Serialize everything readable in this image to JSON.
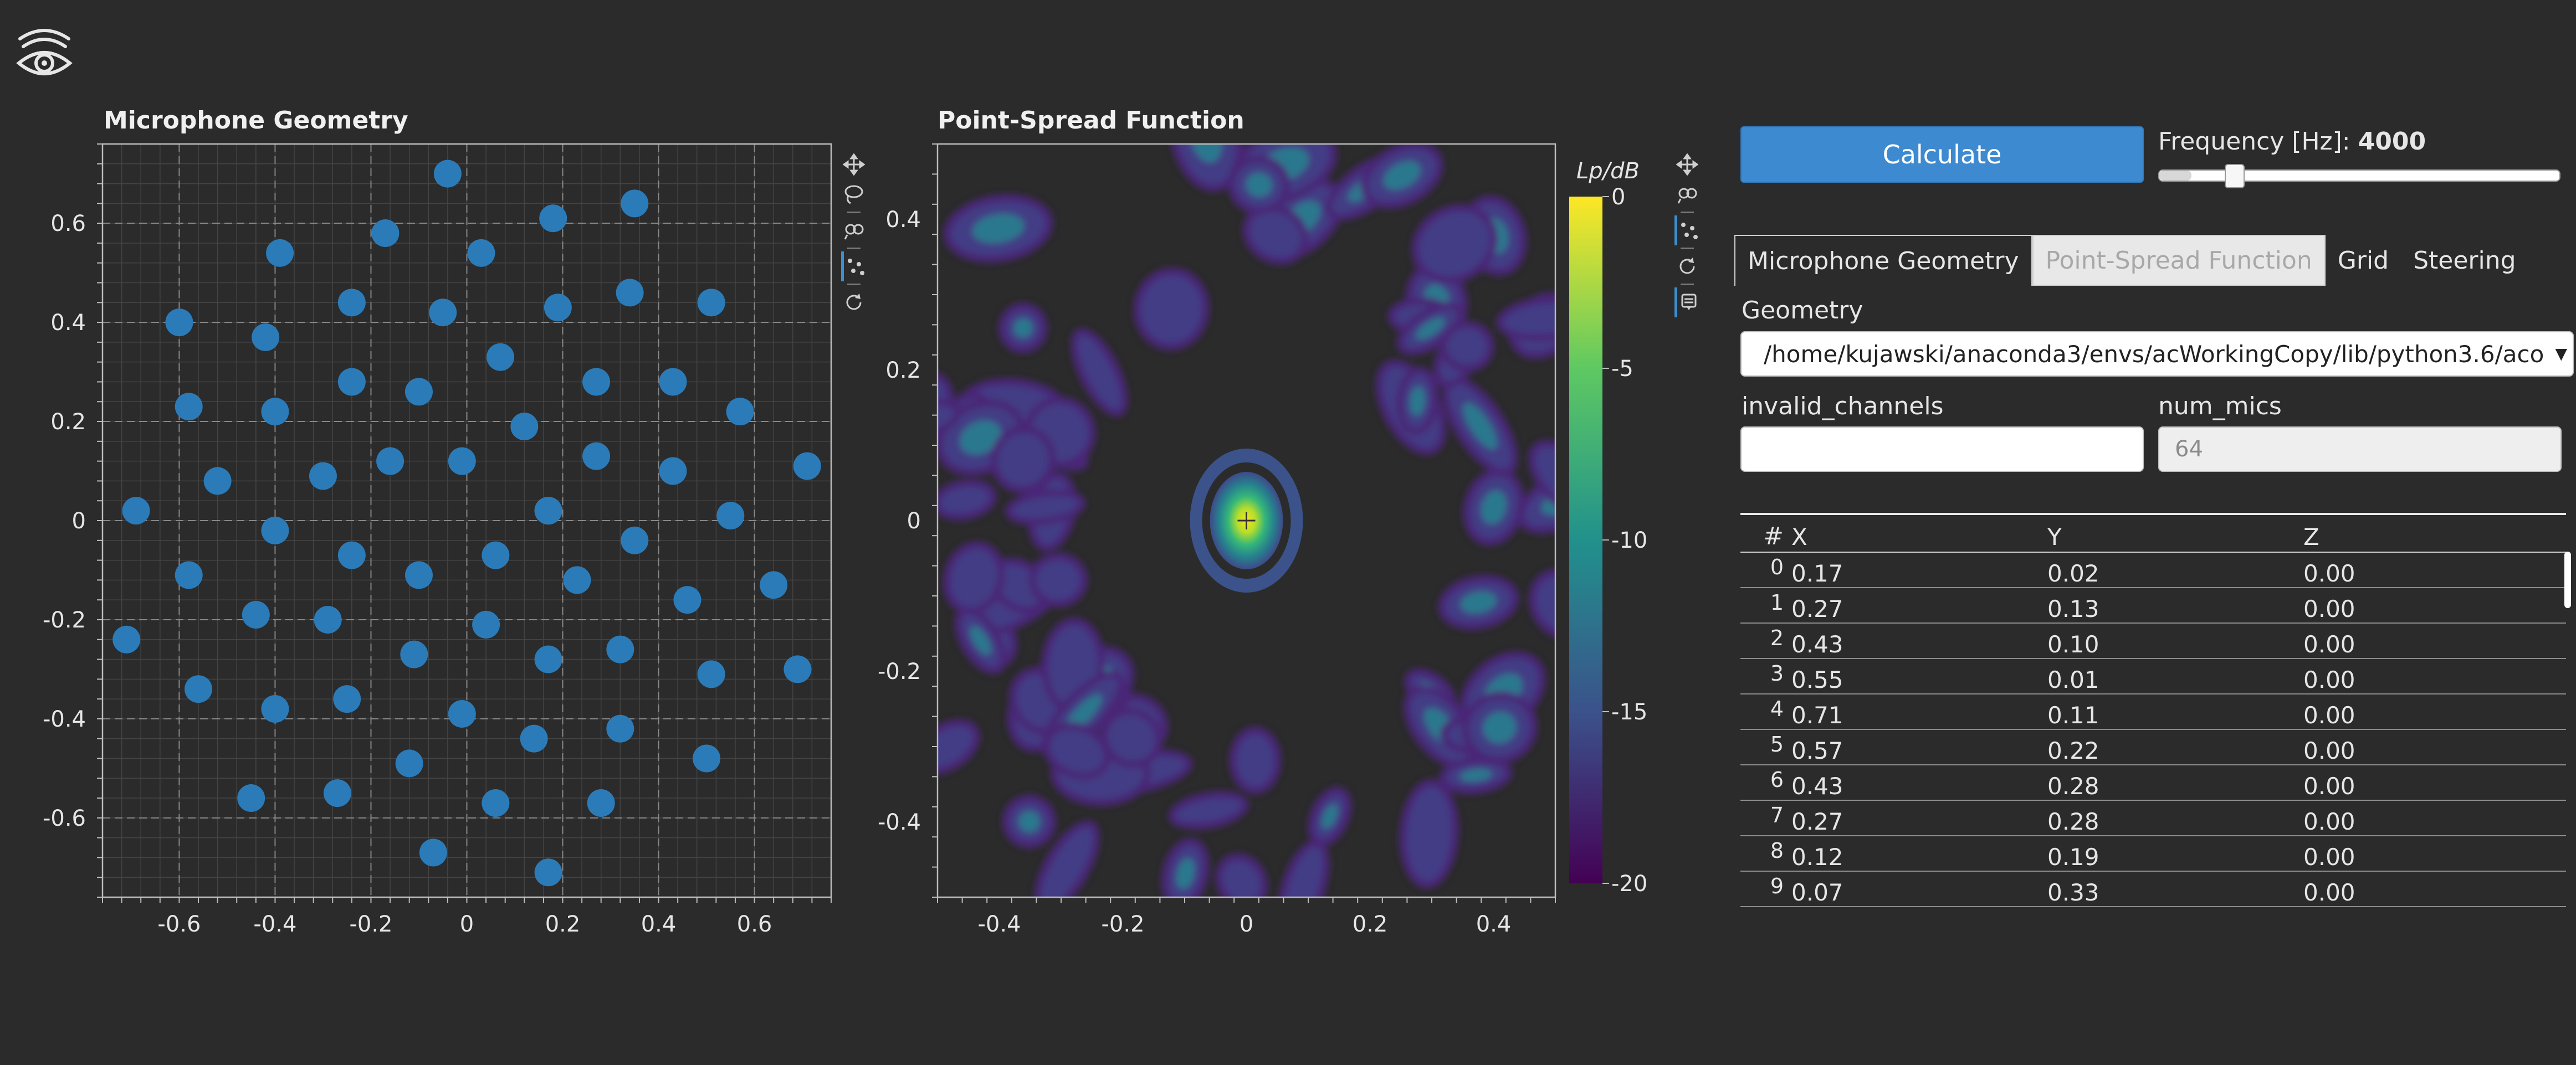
{
  "icons": {
    "logo": "eye-logo-icon",
    "pan": "pan-icon",
    "lasso": "lasso-select-icon",
    "wheel_zoom": "wheel-zoom-icon",
    "hover": "hover-icon",
    "reset": "reset-icon",
    "tap": "tap-icon",
    "crosshair": "crosshair-icon"
  },
  "colors": {
    "background": "#2b2b2b",
    "accent": "#3d8ad1",
    "marker": "#2b7bb9",
    "plot_bg": "#2b2b2b"
  },
  "geometry_plot": {
    "title": "Microphone Geometry",
    "x_ticks": [
      "-0.6",
      "-0.4",
      "-0.2",
      "0",
      "0.2",
      "0.4",
      "0.6"
    ],
    "y_ticks": [
      "0.6",
      "0.4",
      "0.2",
      "0",
      "-0.2",
      "-0.4",
      "-0.6"
    ]
  },
  "psf_plot": {
    "title": "Point-Spread Function",
    "x_ticks": [
      "-0.4",
      "-0.2",
      "0",
      "0.2",
      "0.4"
    ],
    "y_ticks": [
      "0.4",
      "0.2",
      "0",
      "-0.2",
      "-0.4"
    ],
    "colorbar_title": "Lp/dB",
    "colorbar_ticks": [
      "0",
      "-5",
      "-10",
      "-15",
      "-20"
    ]
  },
  "controls": {
    "calculate_label": "Calculate",
    "frequency_label": "Frequency [Hz]: ",
    "frequency_value": "4000",
    "frequency_fraction": 0.08
  },
  "tabs": [
    {
      "label": "Microphone Geometry",
      "state": "active"
    },
    {
      "label": "Point-Spread Function",
      "state": "disabled"
    },
    {
      "label": "Grid",
      "state": "normal"
    },
    {
      "label": "Steering",
      "state": "normal"
    }
  ],
  "form": {
    "geometry_label": "Geometry",
    "geometry_value": "/home/kujawski/anaconda3/envs/acWorkingCopy/lib/python3.6/aco",
    "invalid_channels_label": "invalid_channels",
    "invalid_channels_value": "",
    "num_mics_label": "num_mics",
    "num_mics_value": "64"
  },
  "table": {
    "headers": [
      "#",
      "X",
      "Y",
      "Z"
    ],
    "rows": [
      [
        "0",
        "0.17",
        "0.02",
        "0.00"
      ],
      [
        "1",
        "0.27",
        "0.13",
        "0.00"
      ],
      [
        "2",
        "0.43",
        "0.10",
        "0.00"
      ],
      [
        "3",
        "0.55",
        "0.01",
        "0.00"
      ],
      [
        "4",
        "0.71",
        "0.11",
        "0.00"
      ],
      [
        "5",
        "0.57",
        "0.22",
        "0.00"
      ],
      [
        "6",
        "0.43",
        "0.28",
        "0.00"
      ],
      [
        "7",
        "0.27",
        "0.28",
        "0.00"
      ],
      [
        "8",
        "0.12",
        "0.19",
        "0.00"
      ],
      [
        "9",
        "0.07",
        "0.33",
        "0.00"
      ]
    ]
  },
  "chart_data": [
    {
      "type": "scatter",
      "title": "Microphone Geometry",
      "xlim": [
        -0.76,
        0.76
      ],
      "ylim": [
        -0.76,
        0.76
      ],
      "grid": true,
      "points": [
        [
          0.17,
          0.02
        ],
        [
          0.27,
          0.13
        ],
        [
          0.43,
          0.1
        ],
        [
          0.55,
          0.01
        ],
        [
          0.71,
          0.11
        ],
        [
          0.57,
          0.22
        ],
        [
          0.43,
          0.28
        ],
        [
          0.27,
          0.28
        ],
        [
          0.12,
          0.19
        ],
        [
          0.07,
          0.33
        ],
        [
          0.19,
          0.43
        ],
        [
          0.34,
          0.46
        ],
        [
          0.51,
          0.44
        ],
        [
          0.35,
          0.64
        ],
        [
          0.18,
          0.61
        ],
        [
          0.03,
          0.54
        ],
        [
          -0.05,
          0.42
        ],
        [
          -0.1,
          0.26
        ],
        [
          -0.24,
          0.28
        ],
        [
          -0.24,
          0.44
        ],
        [
          -0.17,
          0.58
        ],
        [
          -0.04,
          0.7
        ],
        [
          -0.39,
          0.54
        ],
        [
          -0.42,
          0.37
        ],
        [
          -0.6,
          0.4
        ],
        [
          -0.58,
          0.23
        ],
        [
          -0.4,
          0.22
        ],
        [
          -0.52,
          0.08
        ],
        [
          -0.69,
          0.02
        ],
        [
          -0.3,
          0.09
        ],
        [
          -0.16,
          0.12
        ],
        [
          -0.01,
          0.12
        ],
        [
          0.17,
          0.02
        ],
        [
          -0.4,
          -0.02
        ],
        [
          -0.24,
          -0.07
        ],
        [
          -0.1,
          -0.11
        ],
        [
          0.06,
          -0.07
        ],
        [
          0.23,
          -0.12
        ],
        [
          0.35,
          -0.04
        ],
        [
          0.46,
          -0.16
        ],
        [
          0.64,
          -0.13
        ],
        [
          -0.58,
          -0.11
        ],
        [
          -0.44,
          -0.19
        ],
        [
          -0.29,
          -0.2
        ],
        [
          -0.71,
          -0.24
        ],
        [
          0.04,
          -0.21
        ],
        [
          -0.11,
          -0.27
        ],
        [
          0.17,
          -0.28
        ],
        [
          0.32,
          -0.26
        ],
        [
          0.51,
          -0.31
        ],
        [
          0.69,
          -0.3
        ],
        [
          -0.56,
          -0.34
        ],
        [
          -0.4,
          -0.38
        ],
        [
          -0.25,
          -0.36
        ],
        [
          -0.01,
          -0.39
        ],
        [
          0.14,
          -0.44
        ],
        [
          0.32,
          -0.42
        ],
        [
          0.5,
          -0.48
        ],
        [
          -0.12,
          -0.49
        ],
        [
          -0.45,
          -0.56
        ],
        [
          -0.27,
          -0.55
        ],
        [
          0.06,
          -0.57
        ],
        [
          0.28,
          -0.57
        ],
        [
          -0.07,
          -0.67
        ],
        [
          0.17,
          -0.71
        ]
      ]
    },
    {
      "type": "heatmap",
      "title": "Point-Spread Function",
      "xlim": [
        -0.5,
        0.5
      ],
      "ylim": [
        -0.5,
        0.5
      ],
      "clim": [
        -20,
        0
      ],
      "colorbar_label": "Lp/dB",
      "colormap": "viridis",
      "peak": [
        0,
        0
      ]
    }
  ]
}
